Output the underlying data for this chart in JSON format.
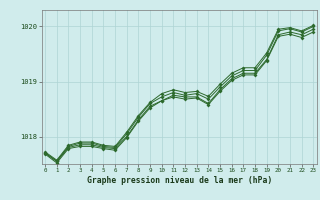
{
  "title": "Graphe pression niveau de la mer (hPa)",
  "bg_color": "#d0ecec",
  "line_color": "#2d6a2d",
  "grid_color": "#aed4d4",
  "x_min": 0,
  "x_max": 23,
  "y_min": 1017.5,
  "y_max": 1020.3,
  "y_ticks": [
    1018,
    1019,
    1020
  ],
  "x_ticks": [
    0,
    1,
    2,
    3,
    4,
    5,
    6,
    7,
    8,
    9,
    10,
    11,
    12,
    13,
    14,
    15,
    16,
    17,
    18,
    19,
    20,
    21,
    22,
    23
  ],
  "series": [
    [
      1017.7,
      1017.55,
      1017.8,
      1017.85,
      1017.85,
      1017.8,
      1017.78,
      1018.0,
      1018.3,
      1018.55,
      1018.65,
      1018.75,
      1018.72,
      1018.72,
      1018.6,
      1018.85,
      1019.05,
      1019.15,
      1019.15,
      1019.4,
      1019.85,
      1019.9,
      1019.85,
      1019.95
    ],
    [
      1017.7,
      1017.55,
      1017.82,
      1017.88,
      1017.88,
      1017.82,
      1017.8,
      1018.05,
      1018.35,
      1018.6,
      1018.72,
      1018.8,
      1018.75,
      1018.78,
      1018.68,
      1018.9,
      1019.1,
      1019.2,
      1019.2,
      1019.48,
      1019.92,
      1019.96,
      1019.9,
      1020.0
    ],
    [
      1017.72,
      1017.57,
      1017.84,
      1017.9,
      1017.9,
      1017.84,
      1017.82,
      1018.08,
      1018.38,
      1018.62,
      1018.78,
      1018.85,
      1018.8,
      1018.82,
      1018.73,
      1018.95,
      1019.15,
      1019.25,
      1019.25,
      1019.52,
      1019.95,
      1019.98,
      1019.92,
      1020.02
    ],
    [
      1017.68,
      1017.52,
      1017.78,
      1017.82,
      1017.82,
      1017.78,
      1017.75,
      1017.98,
      1018.28,
      1018.52,
      1018.65,
      1018.72,
      1018.68,
      1018.7,
      1018.58,
      1018.82,
      1019.02,
      1019.12,
      1019.12,
      1019.38,
      1019.82,
      1019.86,
      1019.8,
      1019.9
    ]
  ]
}
